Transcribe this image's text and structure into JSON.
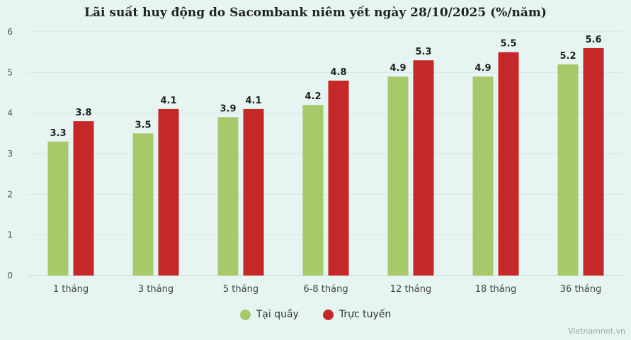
{
  "chart_data": {
    "type": "bar",
    "title": "Lãi suất huy động do Sacombank niêm yết ngày 28/10/2025 (%/năm)",
    "categories": [
      "1 tháng",
      "3 tháng",
      "5 tháng",
      "6-8 tháng",
      "12 tháng",
      "18 tháng",
      "36 tháng"
    ],
    "series": [
      {
        "name": "Tại quầy",
        "color": "#a6c96a",
        "values": [
          3.3,
          3.5,
          3.9,
          4.2,
          4.9,
          4.9,
          5.2
        ]
      },
      {
        "name": "Trực tuyến",
        "color": "#c62828",
        "values": [
          3.8,
          4.1,
          4.1,
          4.8,
          5.3,
          5.5,
          5.6
        ]
      }
    ],
    "yticks": [
      0,
      1,
      2,
      3,
      4,
      5,
      6
    ],
    "ylim": [
      0,
      6
    ],
    "grid": true,
    "legend_position": "bottom"
  },
  "watermark": "Vietnamnet.vn"
}
